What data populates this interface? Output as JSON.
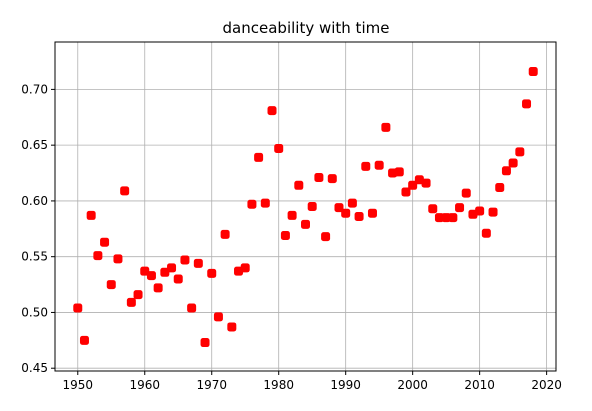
{
  "chart_data": {
    "type": "scatter",
    "title": "danceability with time",
    "xlabel": "",
    "ylabel": "",
    "xlim": [
      1946.6,
      2021.4
    ],
    "ylim": [
      0.4475,
      0.7425
    ],
    "xticks": [
      1950,
      1960,
      1970,
      1980,
      1990,
      2000,
      2010,
      2020
    ],
    "yticks": [
      0.45,
      0.5,
      0.55,
      0.6,
      0.65,
      0.7
    ],
    "xtick_labels": [
      "1950",
      "1960",
      "1970",
      "1980",
      "1990",
      "2000",
      "2010",
      "2020"
    ],
    "ytick_labels": [
      "0.45",
      "0.50",
      "0.55",
      "0.60",
      "0.65",
      "0.70"
    ],
    "grid": true,
    "marker_color": "#ff0000",
    "x": [
      1950,
      1951,
      1952,
      1953,
      1954,
      1955,
      1956,
      1957,
      1958,
      1959,
      1960,
      1961,
      1962,
      1963,
      1964,
      1965,
      1966,
      1967,
      1968,
      1969,
      1970,
      1971,
      1972,
      1973,
      1974,
      1975,
      1976,
      1977,
      1978,
      1979,
      1980,
      1981,
      1982,
      1983,
      1984,
      1985,
      1986,
      1987,
      1988,
      1989,
      1990,
      1991,
      1992,
      1993,
      1994,
      1995,
      1996,
      1997,
      1998,
      1999,
      2000,
      2001,
      2002,
      2003,
      2004,
      2005,
      2006,
      2007,
      2008,
      2009,
      2010,
      2011,
      2012,
      2013,
      2014,
      2015,
      2016,
      2017,
      2018
    ],
    "y": [
      0.504,
      0.475,
      0.587,
      0.551,
      0.563,
      0.525,
      0.548,
      0.609,
      0.509,
      0.516,
      0.537,
      0.533,
      0.522,
      0.536,
      0.54,
      0.53,
      0.547,
      0.504,
      0.544,
      0.473,
      0.535,
      0.496,
      0.57,
      0.487,
      0.537,
      0.54,
      0.597,
      0.639,
      0.598,
      0.681,
      0.647,
      0.569,
      0.587,
      0.614,
      0.579,
      0.595,
      0.621,
      0.568,
      0.62,
      0.594,
      0.589,
      0.598,
      0.586,
      0.631,
      0.589,
      0.632,
      0.666,
      0.625,
      0.626,
      0.608,
      0.614,
      0.619,
      0.616,
      0.593,
      0.585,
      0.585,
      0.585,
      0.594,
      0.607,
      0.588,
      0.591,
      0.571,
      0.59,
      0.612,
      0.627,
      0.634,
      0.644,
      0.687,
      0.716
    ]
  }
}
